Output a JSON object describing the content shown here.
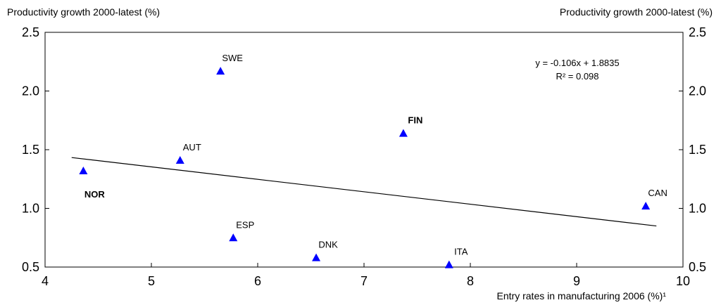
{
  "chart_data": {
    "type": "scatter",
    "ylabel_left": "Productivity growth 2000-latest (%)",
    "ylabel_right": "Productivity growth 2000-latest (%)",
    "xlabel": "Entry rates in manufacturing 2006 (%)¹",
    "xlim": [
      4,
      10
    ],
    "ylim": [
      0.5,
      2.5
    ],
    "x_ticks": [
      4,
      5,
      6,
      7,
      8,
      9,
      10
    ],
    "y_ticks": [
      0.5,
      1.0,
      1.5,
      2.0,
      2.5
    ],
    "y_tick_labels": [
      "0.5",
      "1.0",
      "1.5",
      "2.0",
      "2.5"
    ],
    "grid": false,
    "marker_color": "#0000ff",
    "points": [
      {
        "label": "SWE",
        "x": 5.65,
        "y": 2.17,
        "bold": false
      },
      {
        "label": "AUT",
        "x": 5.27,
        "y": 1.41,
        "bold": false
      },
      {
        "label": "NOR",
        "x": 4.36,
        "y": 1.32,
        "bold": true
      },
      {
        "label": "ESP",
        "x": 5.77,
        "y": 0.75,
        "bold": false
      },
      {
        "label": "DNK",
        "x": 6.55,
        "y": 0.58,
        "bold": false
      },
      {
        "label": "FIN",
        "x": 7.37,
        "y": 1.64,
        "bold": true
      },
      {
        "label": "ITA",
        "x": 7.8,
        "y": 0.52,
        "bold": false
      },
      {
        "label": "CAN",
        "x": 9.65,
        "y": 1.02,
        "bold": false
      }
    ],
    "trendline": {
      "slope": -0.106,
      "intercept": 1.8835,
      "x_range": [
        4.25,
        9.75
      ]
    },
    "equation_text": "y = -0.106x + 1.8835",
    "r2_text": "R² = 0.098"
  }
}
